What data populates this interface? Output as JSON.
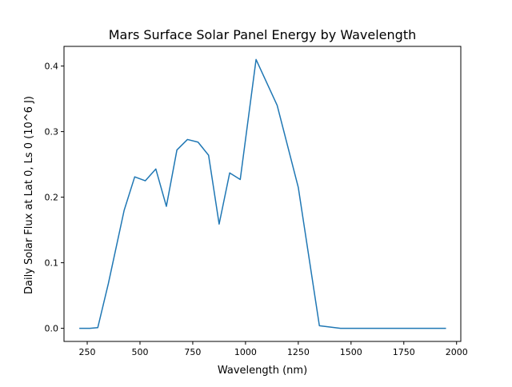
{
  "chart_data": {
    "type": "line",
    "title": "Mars Surface Solar Panel Energy by Wavelength",
    "xlabel": "Wavelength (nm)",
    "ylabel": "Daily Solar Flux at Lat 0, Ls 0 (10^6 J)",
    "xlim": [
      140,
      2020
    ],
    "ylim": [
      -0.02,
      0.43
    ],
    "xticks": [
      250,
      500,
      750,
      1000,
      1250,
      1500,
      1750,
      2000
    ],
    "yticks": [
      0.0,
      0.1,
      0.2,
      0.3,
      0.4
    ],
    "ytick_labels": [
      "0.0",
      "0.1",
      "0.2",
      "0.3",
      "0.4"
    ],
    "grid": false,
    "line_color": "#1f77b4",
    "series": [
      {
        "x": [
          212.5,
          262.5,
          300,
          350,
          425,
          475,
          525,
          575,
          625,
          675,
          725,
          775,
          825,
          875,
          925,
          975,
          1050,
          1150,
          1250,
          1350,
          1450,
          1550,
          1650,
          1750,
          1850,
          1950
        ],
        "y": [
          0.0,
          0.0,
          0.001,
          0.068,
          0.18,
          0.231,
          0.225,
          0.243,
          0.186,
          0.272,
          0.288,
          0.284,
          0.264,
          0.159,
          0.237,
          0.227,
          0.41,
          0.34,
          0.215,
          0.004,
          0.0,
          0.0,
          0.0,
          0.0,
          0.0,
          0.0
        ]
      }
    ]
  }
}
